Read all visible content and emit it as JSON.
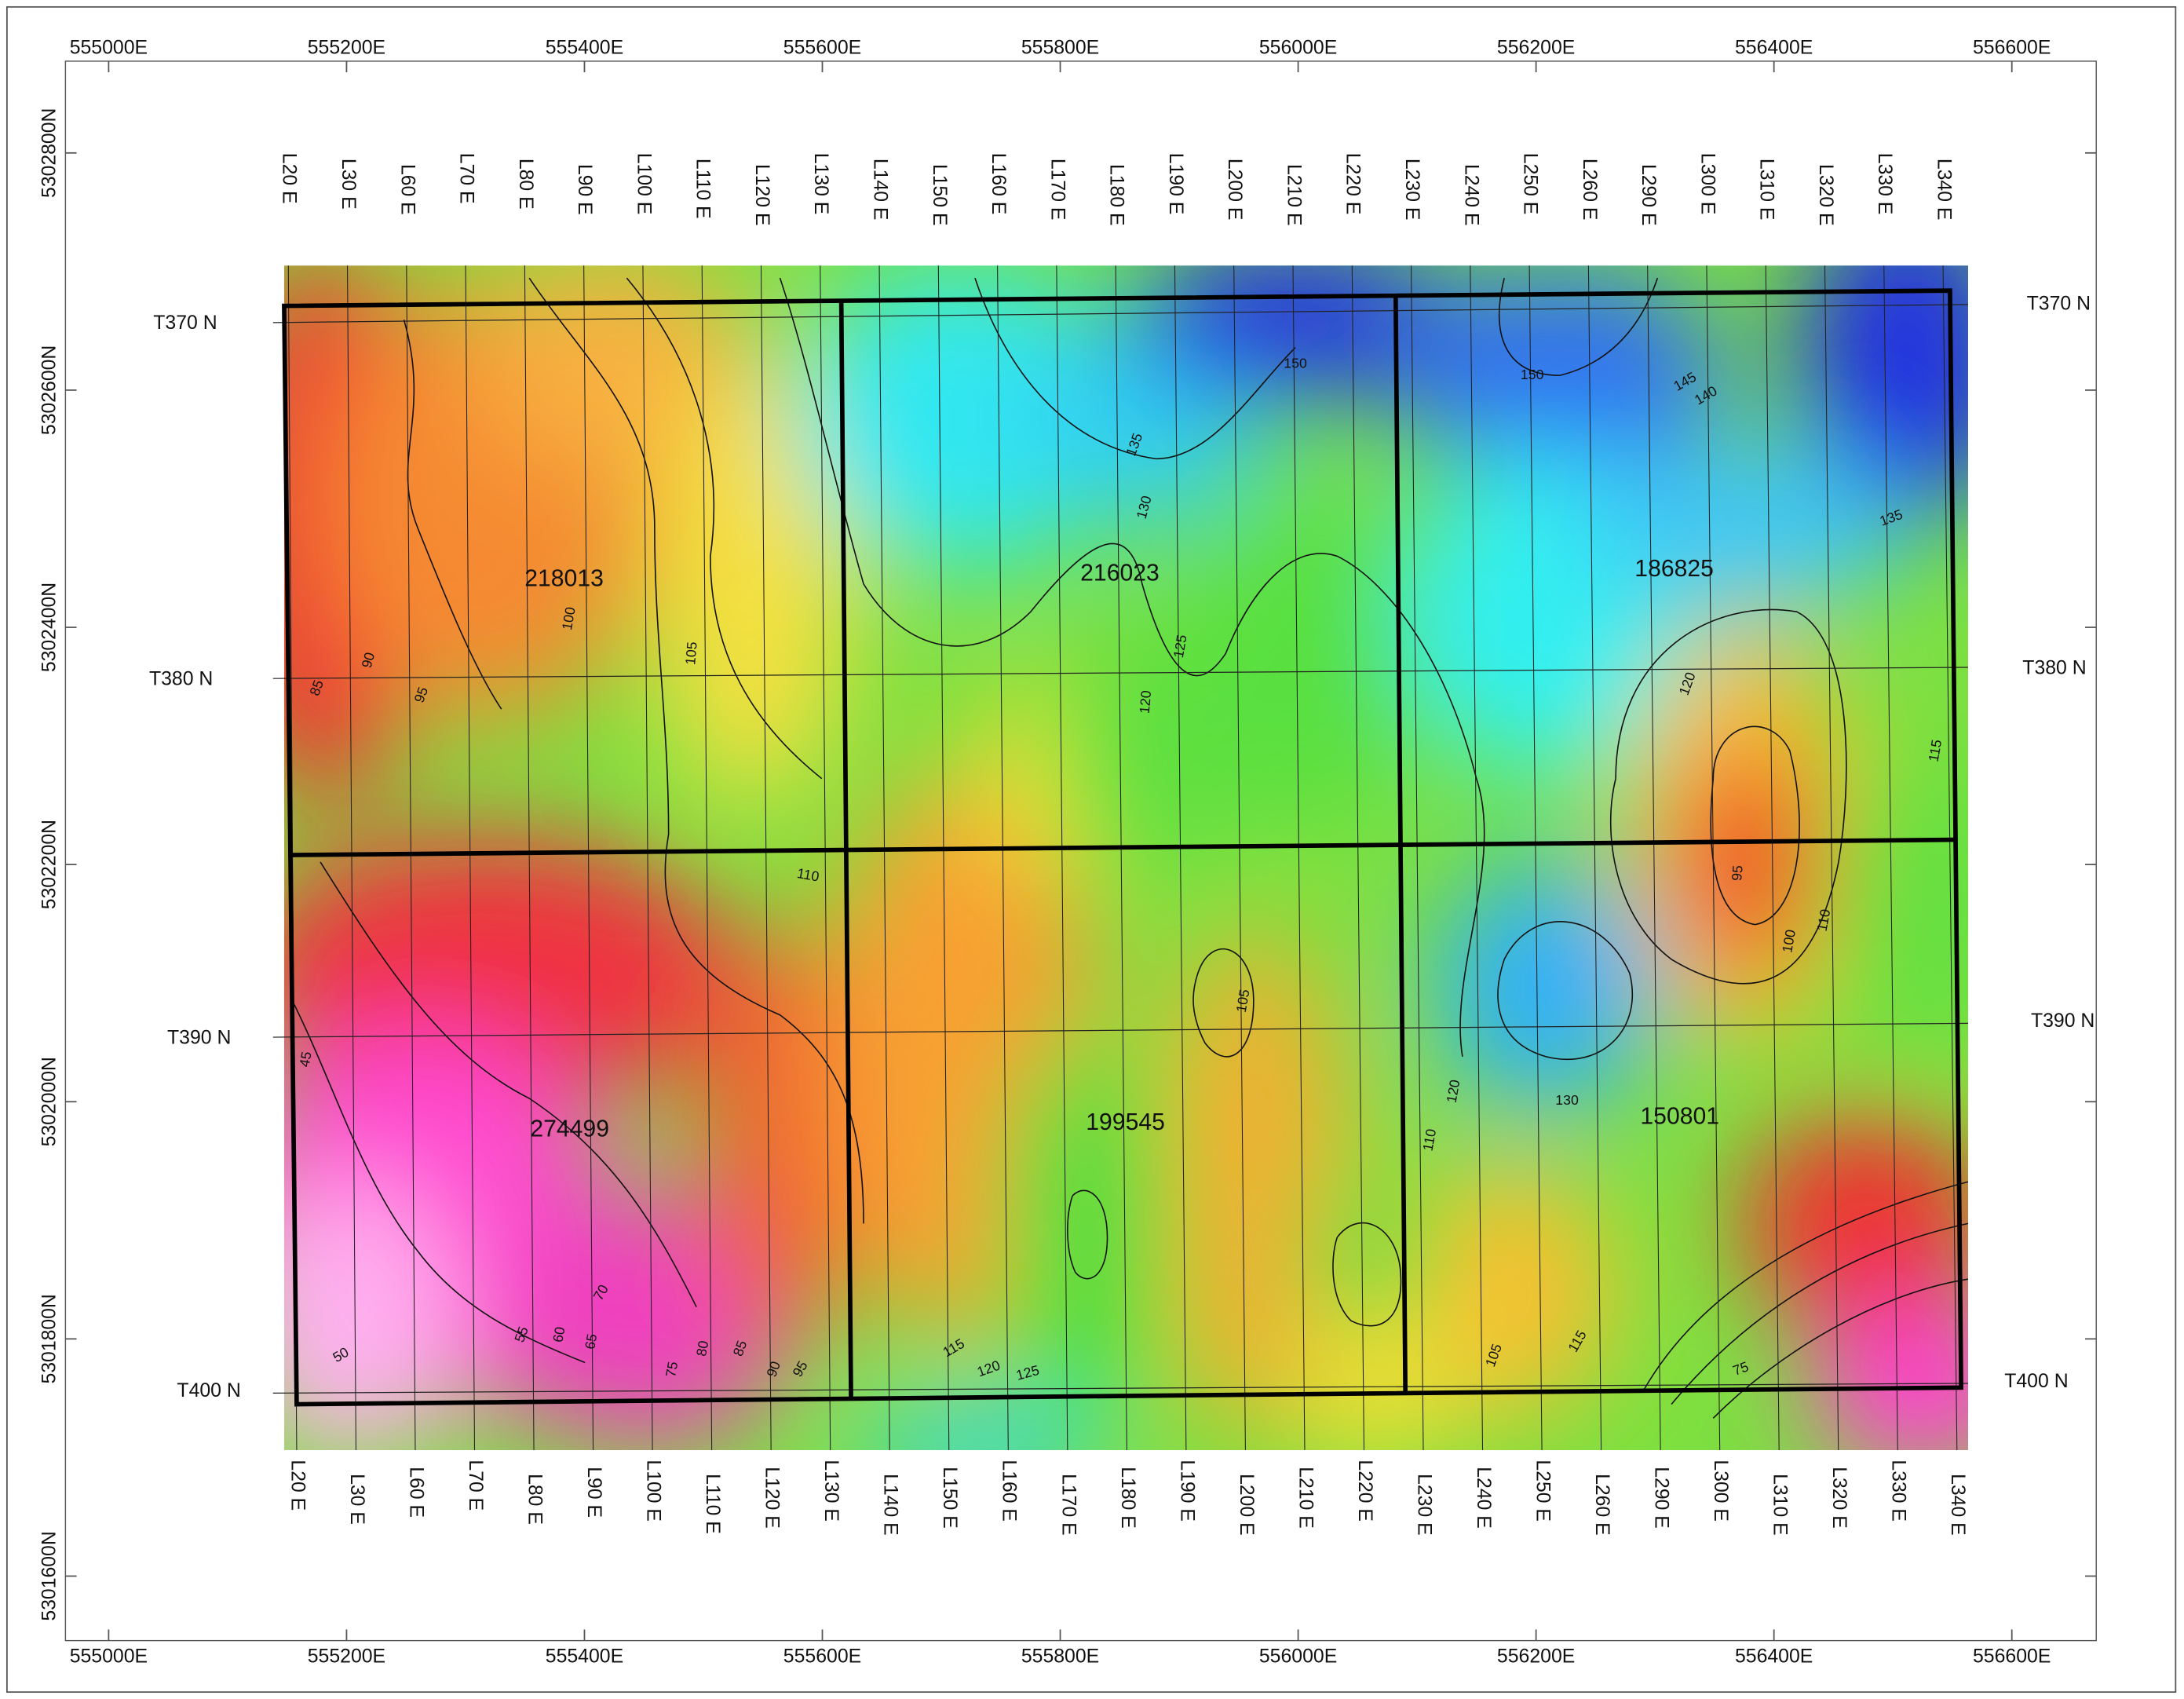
{
  "eastings": [
    "555000E",
    "555200E",
    "555400E",
    "555600E",
    "555800E",
    "556000E",
    "556200E",
    "556400E",
    "556600E"
  ],
  "northings": [
    "5302800N",
    "5302600N",
    "5302400N",
    "5302200N",
    "5302000N",
    "5301800N",
    "5301600N"
  ],
  "lines_top": [
    "L20 E",
    "L30 E",
    "L60 E",
    "L70 E",
    "L80 E",
    "L90 E",
    "L100 E",
    "L110 E",
    "L120 E",
    "L130 E",
    "L140 E",
    "L150 E",
    "L160 E",
    "L170 E",
    "L180 E",
    "L190 E",
    "L200 E",
    "L210 E",
    "L220 E",
    "L230 E",
    "L240 E",
    "L250 E",
    "L260 E",
    "L290 E",
    "L300 E",
    "L310 E",
    "L320 E",
    "L330 E",
    "L340 E"
  ],
  "lines_bottom": [
    "L20 E",
    "L30 E",
    "L60 E",
    "L70 E",
    "L80 E",
    "L90 E",
    "L100 E",
    "L110 E",
    "L120 E",
    "L130 E",
    "L140 E",
    "L150 E",
    "L160 E",
    "L170 E",
    "L180 E",
    "L190 E",
    "L200 E",
    "L210 E",
    "L220 E",
    "L230 E",
    "L240 E",
    "L250 E",
    "L260 E",
    "L290 E",
    "L300 E",
    "L310 E",
    "L320 E",
    "L330 E",
    "L340 E"
  ],
  "tie_lines": [
    "T370 N",
    "T380 N",
    "T390 N",
    "T400 N"
  ],
  "claims": [
    "218013",
    "216023",
    "186825",
    "274499",
    "199545",
    "150801"
  ],
  "contour_labels": [
    "100",
    "105",
    "95",
    "90",
    "85",
    "120",
    "125",
    "130",
    "135",
    "150",
    "150",
    "145",
    "140",
    "110",
    "105",
    "45",
    "50",
    "55",
    "60",
    "65",
    "70",
    "75",
    "80",
    "85",
    "90",
    "95",
    "115",
    "120",
    "125",
    "130",
    "135",
    "120",
    "115",
    "110",
    "100",
    "95",
    "110",
    "105",
    "115",
    "120",
    "75"
  ]
}
